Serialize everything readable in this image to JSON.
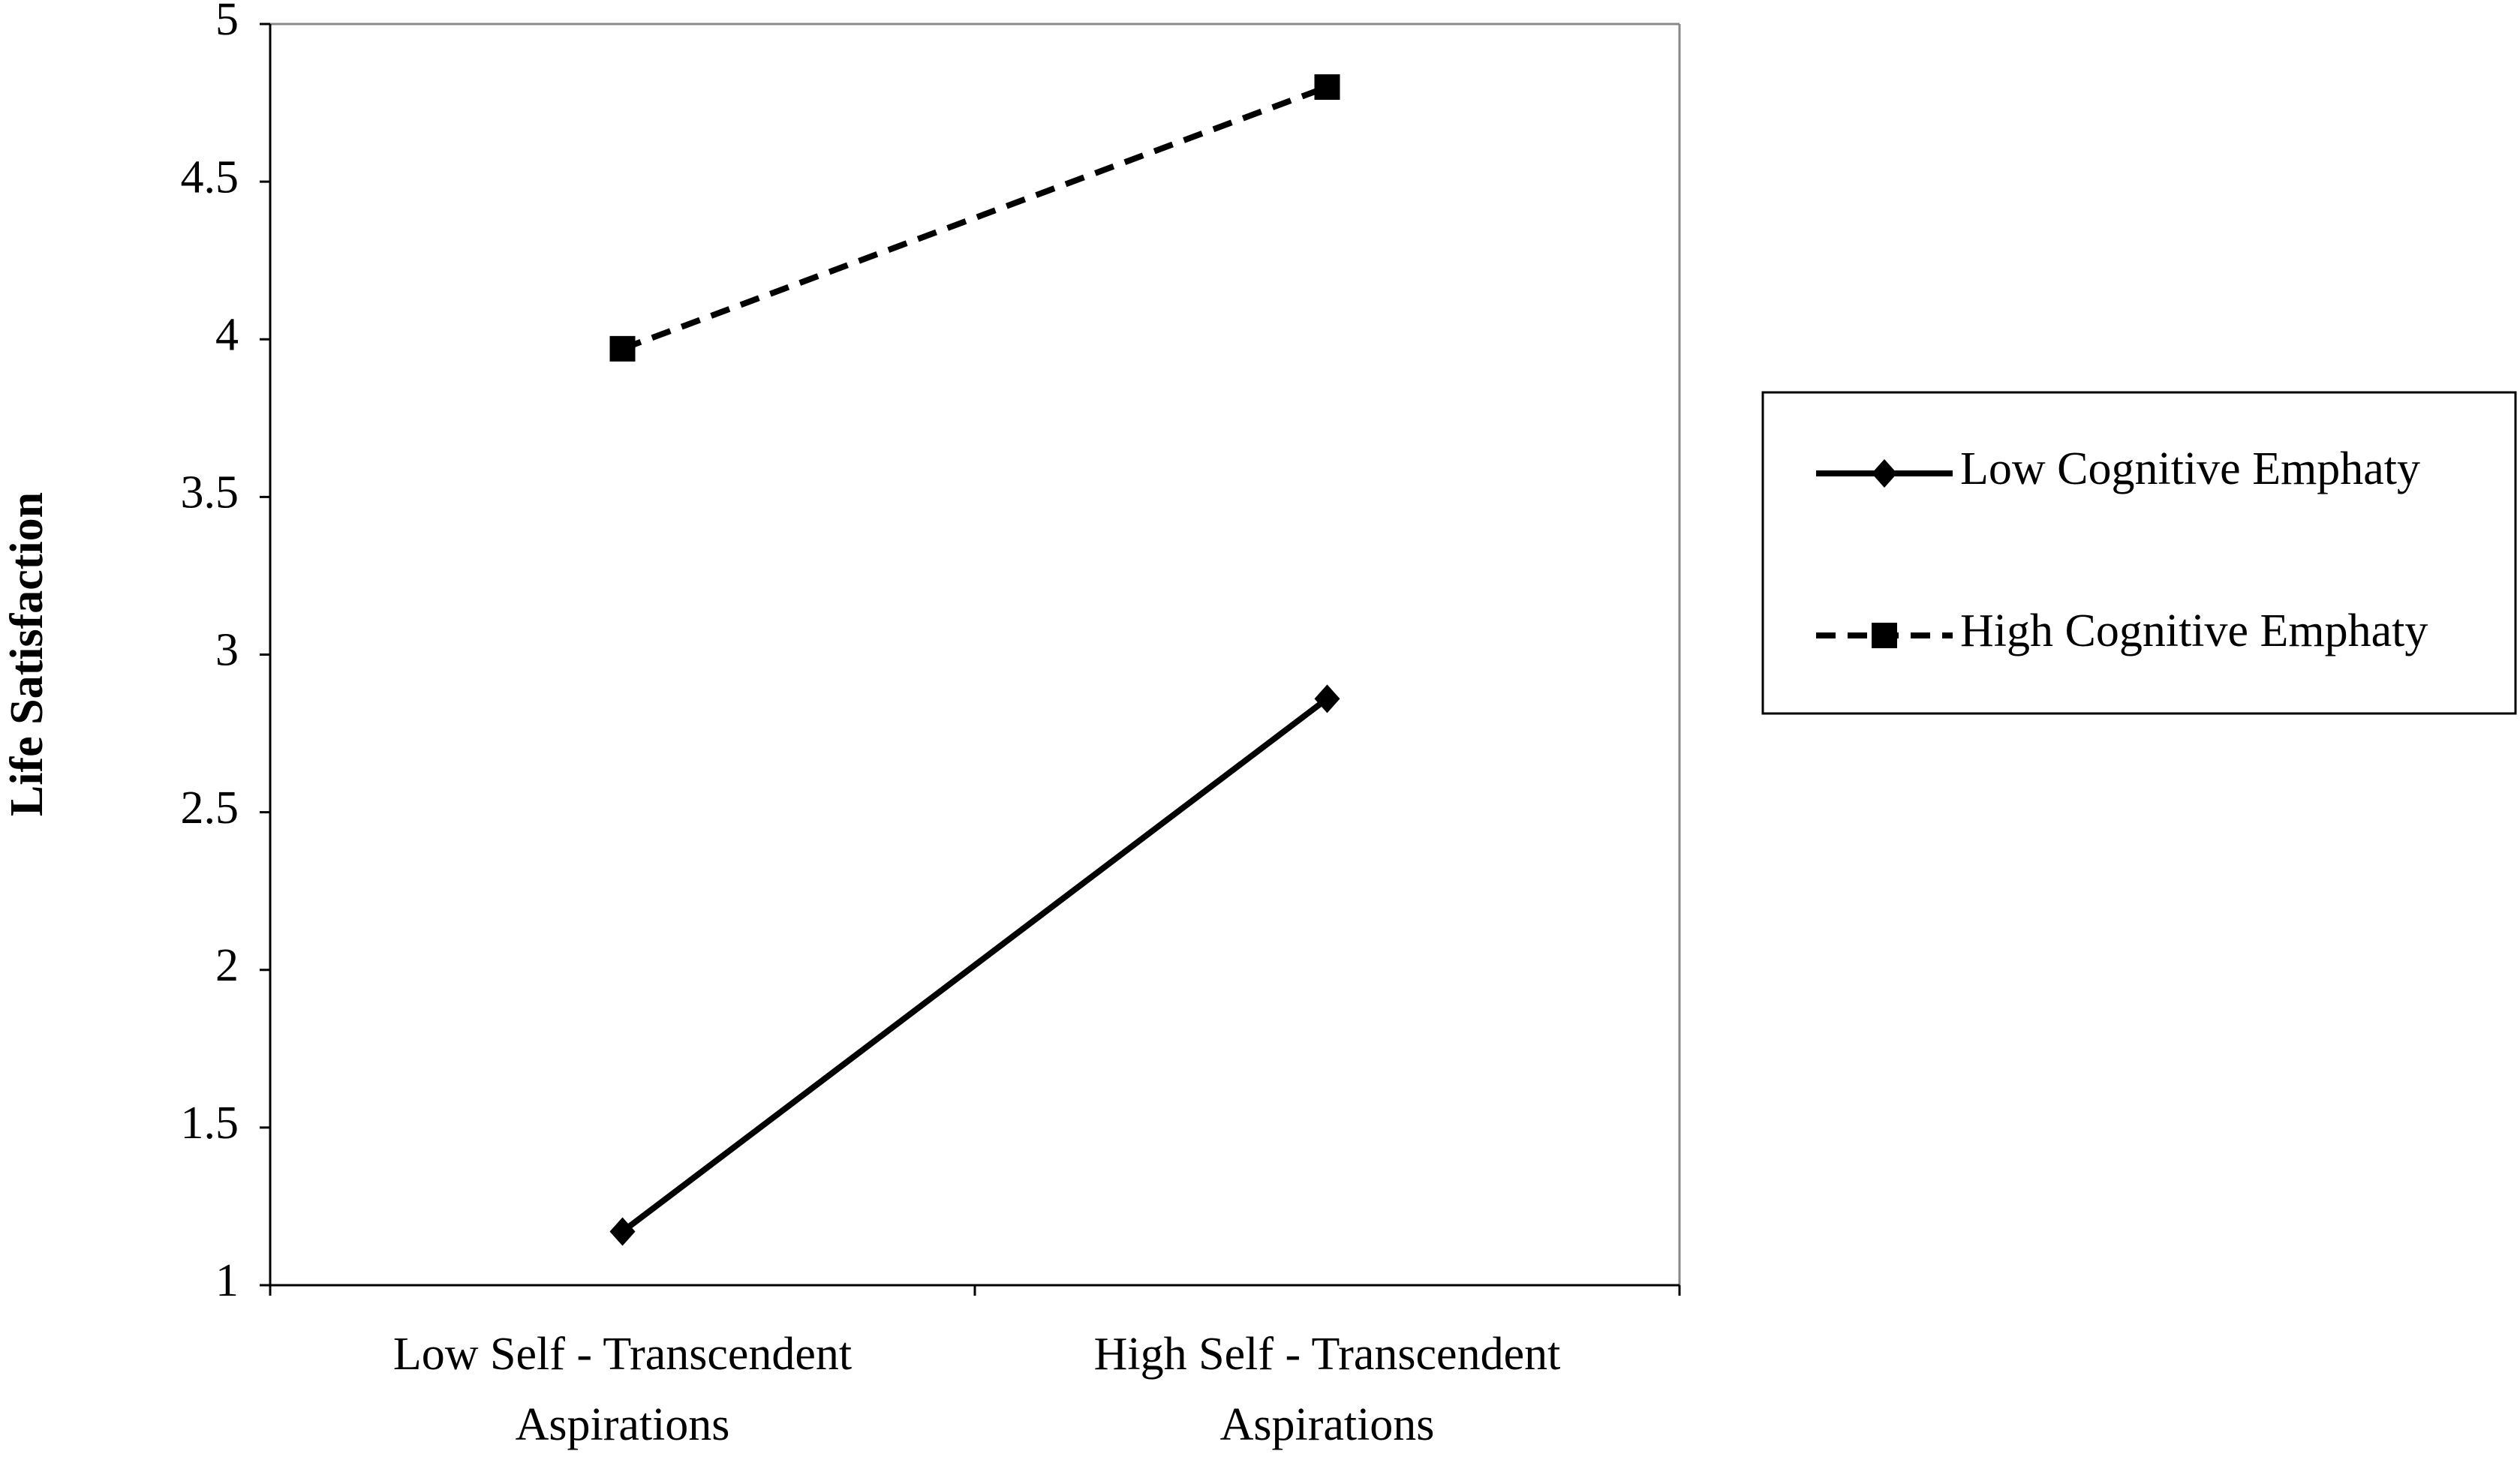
{
  "chart_data": {
    "type": "line",
    "y_label": "Life Satisfaction",
    "categories": [
      [
        "Low Self - Transcendent",
        "Aspirations"
      ],
      [
        "High Self - Transcendent",
        "Aspirations"
      ]
    ],
    "series": [
      {
        "name": "Low Cognitive Emphaty",
        "color": "#000000",
        "line_style": "solid",
        "marker": "diamond",
        "values": [
          1.17,
          2.86
        ]
      },
      {
        "name": "High Cognitive Emphaty",
        "color": "#000000",
        "line_style": "dashed",
        "marker": "square",
        "values": [
          3.97,
          4.8
        ]
      }
    ],
    "ylim": [
      1,
      5
    ],
    "yticks": [
      1,
      1.5,
      2,
      2.5,
      3,
      3.5,
      4,
      4.5,
      5
    ],
    "grid": false,
    "legend": "right"
  }
}
